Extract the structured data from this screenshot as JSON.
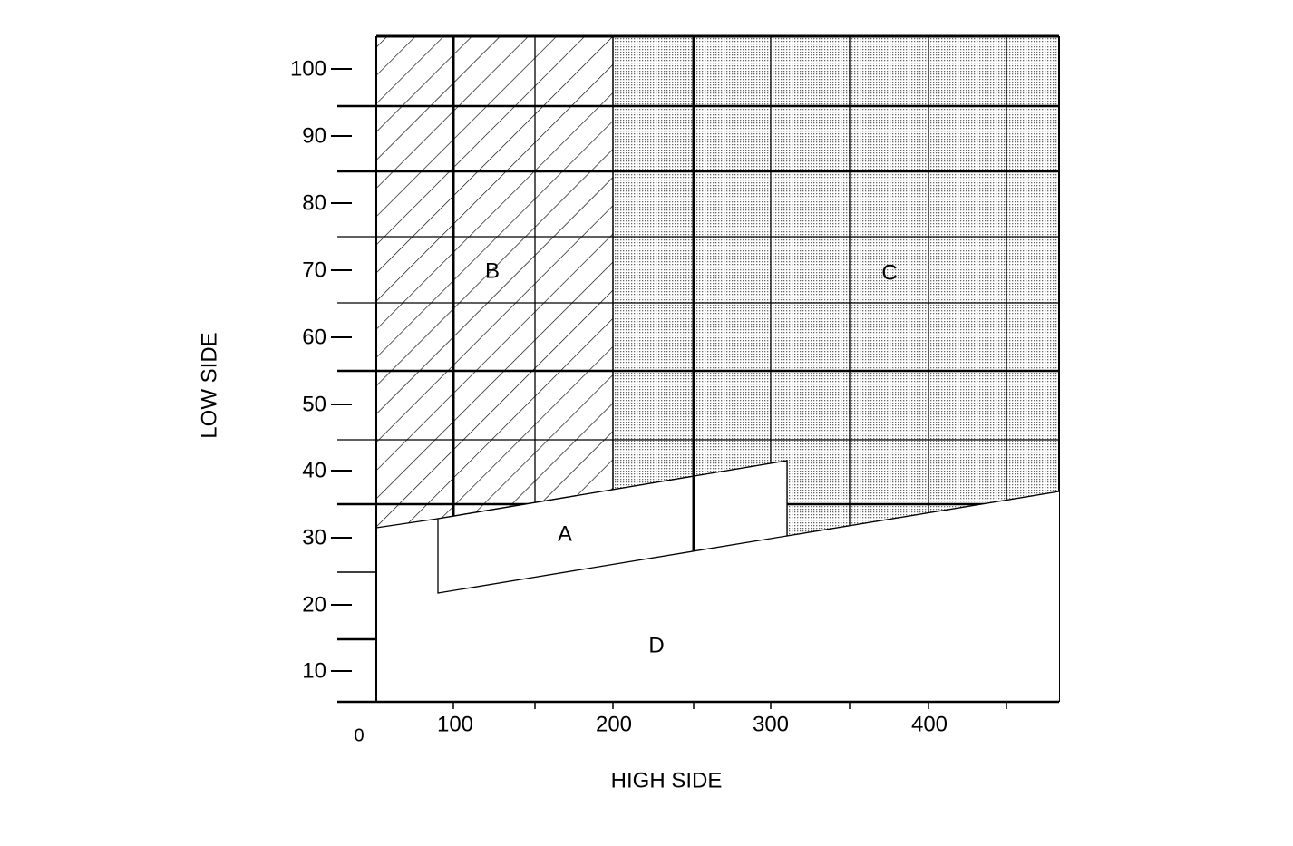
{
  "y_axis": {
    "label": "LOW SIDE",
    "ticks": [
      100,
      90,
      80,
      70,
      60,
      50,
      40,
      30,
      20,
      10
    ]
  },
  "x_axis": {
    "label": "HIGH SIDE",
    "origin": 0,
    "ticks": [
      100,
      200,
      300,
      400
    ]
  },
  "regions": [
    {
      "label": "A"
    },
    {
      "label": "B"
    },
    {
      "label": "C"
    },
    {
      "label": "D"
    }
  ]
}
